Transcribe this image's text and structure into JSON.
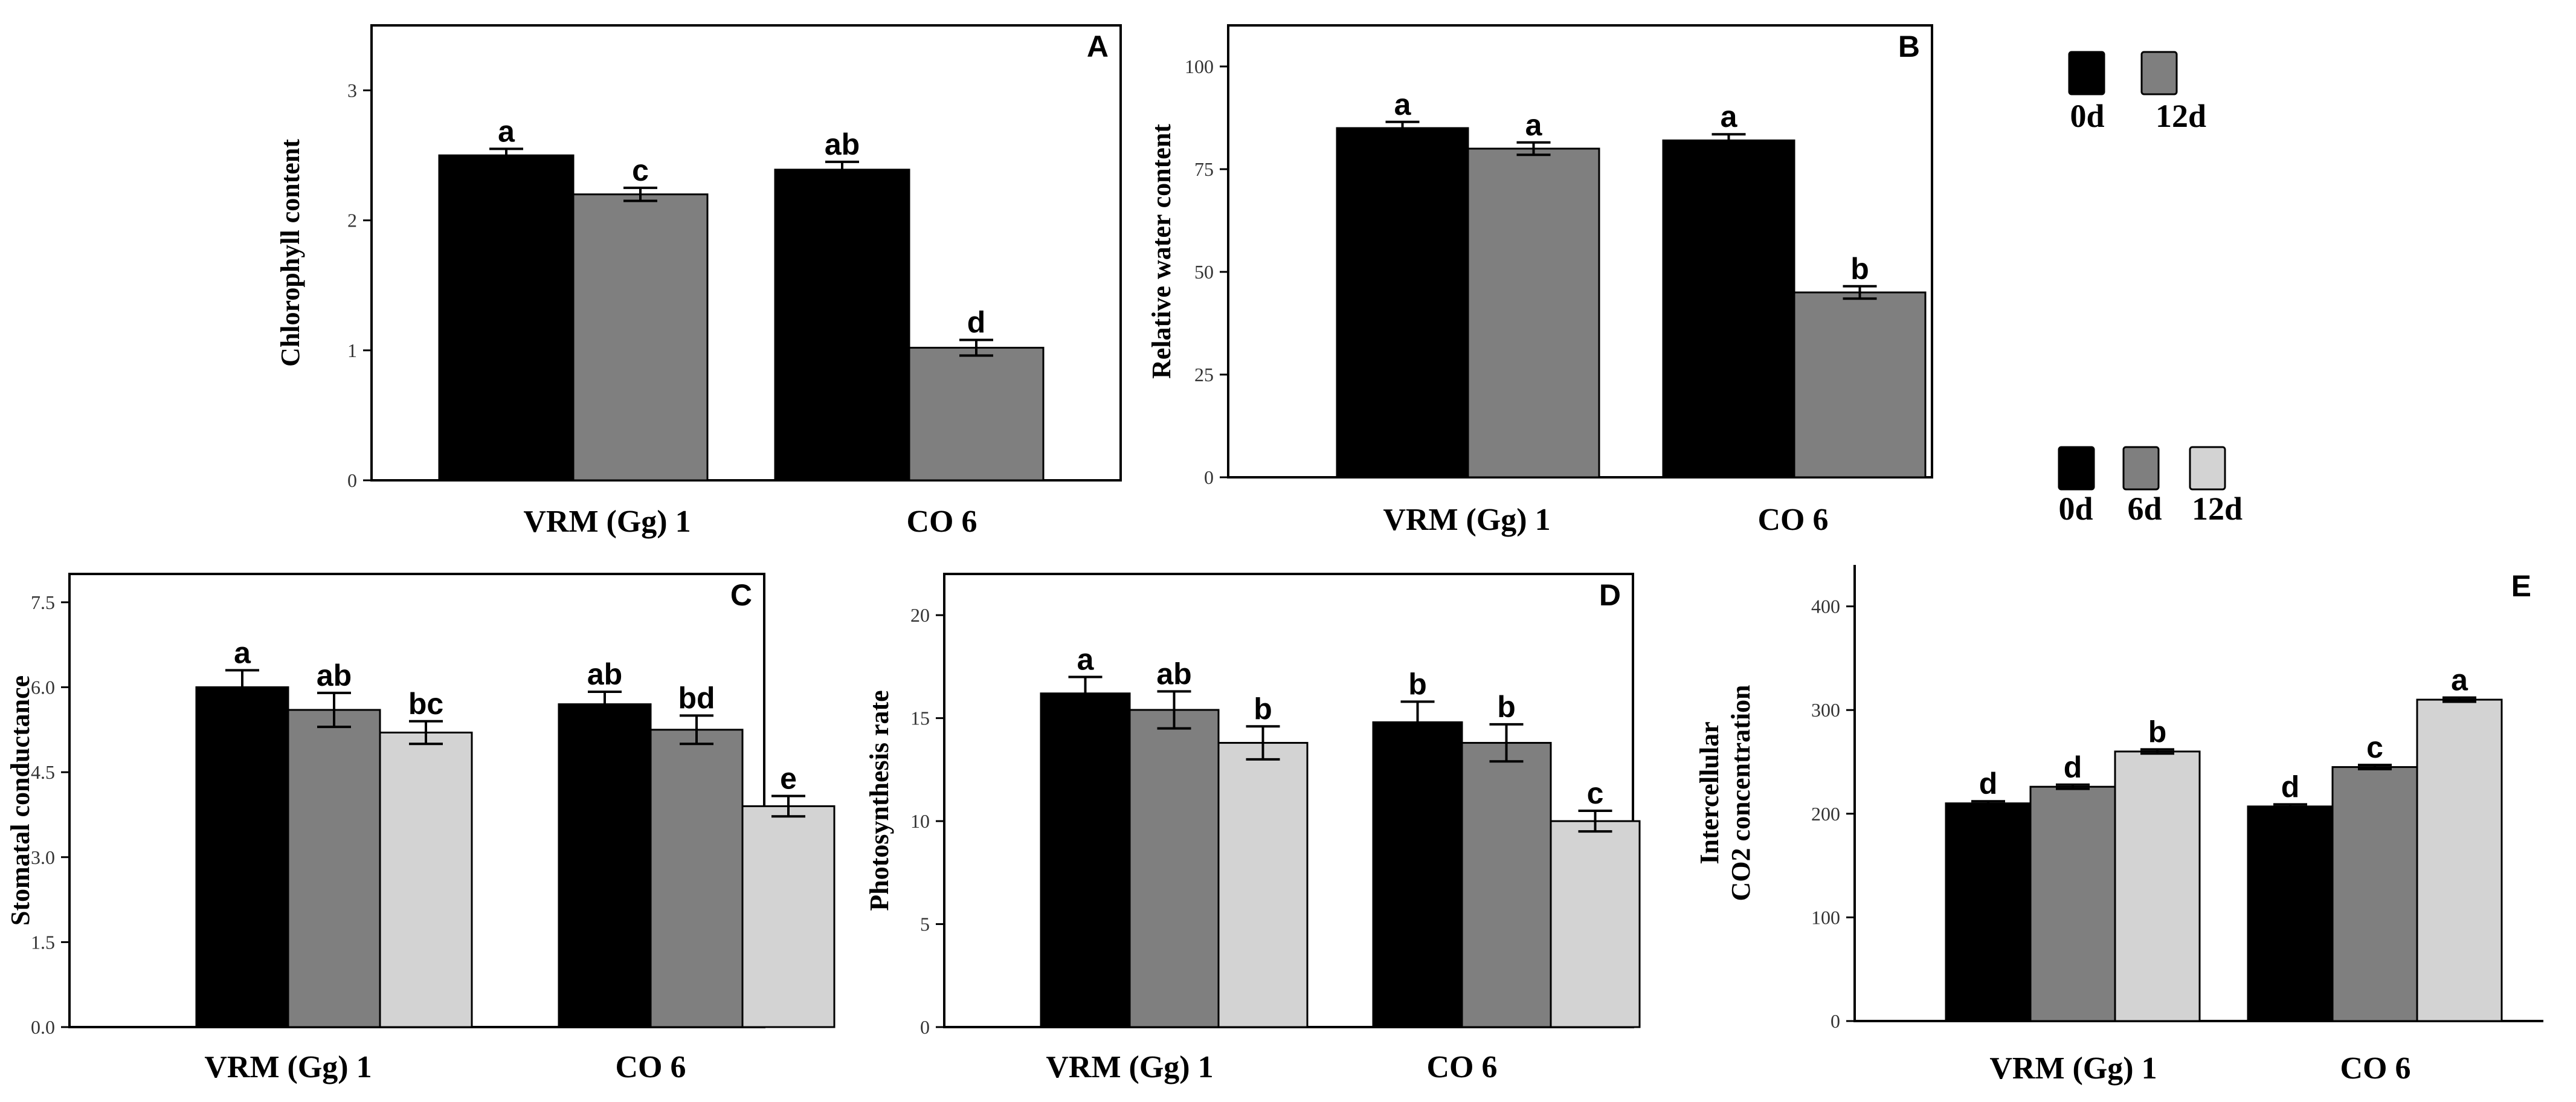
{
  "chart_data": [
    {
      "panel": "A",
      "type": "bar",
      "ylabel": "Chlorophyll content",
      "ylim": [
        0,
        3.5
      ],
      "yticks": [
        0,
        1,
        2,
        3
      ],
      "tick_decimals": 0,
      "categories": [
        "VRM (Gg) 1",
        "CO 6"
      ],
      "series": [
        {
          "name": "0d",
          "color": "#000000",
          "values": [
            2.5,
            2.39
          ],
          "errors": [
            0.05,
            0.06
          ],
          "labels": [
            "a",
            "ab"
          ]
        },
        {
          "name": "12d",
          "color": "#7f7f7f",
          "values": [
            2.2,
            1.02
          ],
          "errors": [
            0.05,
            0.06
          ],
          "labels": [
            "c",
            "d"
          ]
        }
      ]
    },
    {
      "panel": "B",
      "type": "bar",
      "ylabel": "Relative water content",
      "ylim": [
        0,
        110
      ],
      "yticks": [
        0,
        25,
        50,
        75,
        100
      ],
      "tick_decimals": 0,
      "categories": [
        "VRM (Gg) 1",
        "CO 6"
      ],
      "series": [
        {
          "name": "0d",
          "color": "#000000",
          "values": [
            85,
            82
          ],
          "errors": [
            1.5,
            1.5
          ],
          "labels": [
            "a",
            "a"
          ]
        },
        {
          "name": "12d",
          "color": "#7f7f7f",
          "values": [
            80,
            45
          ],
          "errors": [
            1.5,
            1.5
          ],
          "labels": [
            "a",
            "b"
          ]
        }
      ]
    },
    {
      "panel": "C",
      "type": "bar",
      "ylabel": "Stomatal conductance",
      "ylim": [
        0,
        8
      ],
      "yticks": [
        0,
        1.5,
        3,
        4.5,
        6,
        7.5
      ],
      "tick_decimals": 1,
      "categories": [
        "VRM (Gg) 1",
        "CO 6"
      ],
      "series": [
        {
          "name": "0d",
          "color": "#000000",
          "values": [
            6.0,
            5.7
          ],
          "errors": [
            0.3,
            0.22
          ],
          "labels": [
            "a",
            "ab"
          ]
        },
        {
          "name": "6d",
          "color": "#7f7f7f",
          "values": [
            5.6,
            5.25
          ],
          "errors": [
            0.3,
            0.25
          ],
          "labels": [
            "ab",
            "bd"
          ]
        },
        {
          "name": "12d",
          "color": "#d3d3d3",
          "values": [
            5.2,
            3.9
          ],
          "errors": [
            0.2,
            0.18
          ],
          "labels": [
            "bc",
            "e"
          ]
        }
      ]
    },
    {
      "panel": "D",
      "type": "bar",
      "ylabel": "Photosynthesis rate",
      "ylim": [
        0,
        22
      ],
      "yticks": [
        0,
        5,
        10,
        15,
        20
      ],
      "tick_decimals": 0,
      "categories": [
        "VRM (Gg) 1",
        "CO 6"
      ],
      "series": [
        {
          "name": "0d",
          "color": "#000000",
          "values": [
            16.2,
            14.8
          ],
          "errors": [
            0.8,
            1.0
          ],
          "labels": [
            "a",
            "b"
          ]
        },
        {
          "name": "6d",
          "color": "#7f7f7f",
          "values": [
            15.4,
            13.8
          ],
          "errors": [
            0.9,
            0.9
          ],
          "labels": [
            "ab",
            "b"
          ]
        },
        {
          "name": "12d",
          "color": "#d3d3d3",
          "values": [
            13.8,
            10.0
          ],
          "errors": [
            0.8,
            0.5
          ],
          "labels": [
            "b",
            "c"
          ]
        }
      ]
    },
    {
      "panel": "E",
      "type": "bar",
      "ylabel": "Intercellular\nCO2 concentration",
      "ylim": [
        0,
        440
      ],
      "yticks": [
        0,
        100,
        200,
        300,
        400
      ],
      "tick_decimals": 0,
      "categories": [
        "VRM (Gg) 1",
        "CO 6"
      ],
      "series": [
        {
          "name": "0d",
          "color": "#000000",
          "values": [
            210,
            207
          ],
          "errors": [
            2,
            2
          ],
          "labels": [
            "d",
            "d"
          ]
        },
        {
          "name": "6d",
          "color": "#7f7f7f",
          "values": [
            226,
            245
          ],
          "errors": [
            2,
            2
          ],
          "labels": [
            "d",
            "c"
          ]
        },
        {
          "name": "12d",
          "color": "#d3d3d3",
          "values": [
            260,
            310
          ],
          "errors": [
            2,
            2
          ],
          "labels": [
            "b",
            "a"
          ]
        }
      ]
    }
  ],
  "legends": [
    {
      "id": "legend-two",
      "items": [
        {
          "label": "0d",
          "color": "#000000"
        },
        {
          "label": "12d",
          "color": "#7f7f7f"
        }
      ]
    },
    {
      "id": "legend-three",
      "items": [
        {
          "label": "0d",
          "color": "#000000"
        },
        {
          "label": "6d",
          "color": "#7f7f7f"
        },
        {
          "label": "12d",
          "color": "#d3d3d3"
        }
      ]
    }
  ]
}
